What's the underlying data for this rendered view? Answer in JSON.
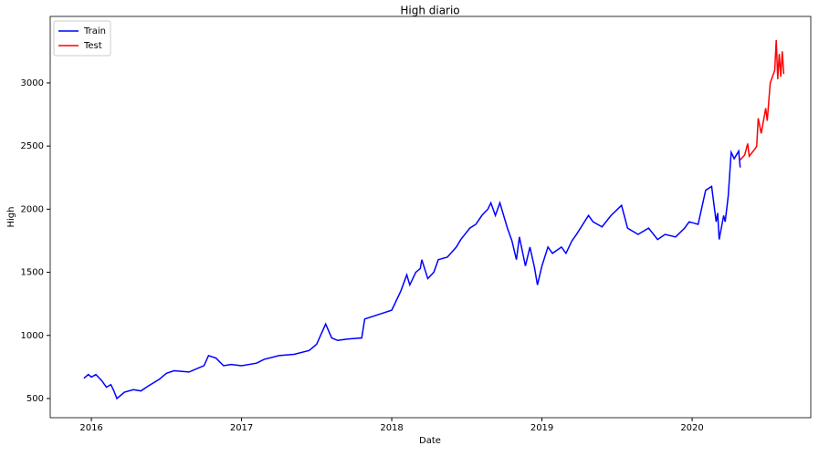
{
  "chart_data": {
    "type": "line",
    "title": "High diario",
    "x_label": "Date",
    "y_label": "High",
    "xlim": [
      2015.726,
      2020.79
    ],
    "ylim": [
      348,
      3527
    ],
    "xticks": [
      2016,
      2017,
      2018,
      2019,
      2020
    ],
    "yticks": [
      500,
      1000,
      1500,
      2000,
      2500,
      3000
    ],
    "legend": "upper left",
    "grid": false,
    "series": [
      {
        "name": "Train",
        "color": "#0000ff",
        "x": [
          2015.95,
          2015.98,
          2016.0,
          2016.03,
          2016.07,
          2016.1,
          2016.13,
          2016.15,
          2016.17,
          2016.22,
          2016.28,
          2016.33,
          2016.38,
          2016.45,
          2016.5,
          2016.55,
          2016.65,
          2016.75,
          2016.78,
          2016.83,
          2016.88,
          2016.93,
          2017.0,
          2017.1,
          2017.15,
          2017.25,
          2017.35,
          2017.45,
          2017.5,
          2017.56,
          2017.6,
          2017.64,
          2017.7,
          2017.8,
          2017.82,
          2017.95,
          2018.0,
          2018.06,
          2018.1,
          2018.12,
          2018.16,
          2018.19,
          2018.2,
          2018.24,
          2018.28,
          2018.31,
          2018.37,
          2018.43,
          2018.46,
          2018.52,
          2018.56,
          2018.6,
          2018.64,
          2018.66,
          2018.69,
          2018.72,
          2018.77,
          2018.8,
          2018.83,
          2018.85,
          2018.89,
          2018.92,
          2018.95,
          2018.97,
          2019.0,
          2019.04,
          2019.07,
          2019.13,
          2019.16,
          2019.2,
          2019.23,
          2019.31,
          2019.34,
          2019.4,
          2019.46,
          2019.53,
          2019.57,
          2019.64,
          2019.71,
          2019.77,
          2019.82,
          2019.89,
          2019.95,
          2019.98,
          2020.04,
          2020.09,
          2020.13,
          2020.16,
          2020.17,
          2020.18,
          2020.21,
          2020.22,
          2020.24,
          2020.26,
          2020.28,
          2020.31,
          2020.32
        ],
        "values": [
          660,
          690,
          670,
          690,
          640,
          590,
          610,
          560,
          500,
          550,
          570,
          560,
          600,
          650,
          700,
          720,
          710,
          760,
          840,
          820,
          760,
          770,
          760,
          780,
          810,
          840,
          850,
          880,
          930,
          1090,
          980,
          960,
          970,
          980,
          1130,
          1180,
          1200,
          1350,
          1480,
          1400,
          1500,
          1530,
          1600,
          1450,
          1500,
          1600,
          1620,
          1700,
          1760,
          1850,
          1880,
          1950,
          2000,
          2050,
          1950,
          2050,
          1850,
          1750,
          1600,
          1780,
          1550,
          1700,
          1540,
          1400,
          1550,
          1700,
          1650,
          1700,
          1650,
          1750,
          1800,
          1950,
          1900,
          1860,
          1950,
          2030,
          1850,
          1800,
          1850,
          1760,
          1800,
          1780,
          1850,
          1900,
          1880,
          2150,
          2180,
          1900,
          1970,
          1760,
          1950,
          1900,
          2100,
          2450,
          2400,
          2460,
          2330
        ]
      },
      {
        "name": "Test",
        "color": "#ff0000",
        "x": [
          2020.32,
          2020.35,
          2020.37,
          2020.38,
          2020.42,
          2020.43,
          2020.44,
          2020.46,
          2020.49,
          2020.5,
          2020.52,
          2020.55,
          2020.56,
          2020.57,
          2020.58,
          2020.59,
          2020.6,
          2020.61
        ],
        "values": [
          2390,
          2430,
          2520,
          2420,
          2480,
          2500,
          2720,
          2600,
          2800,
          2700,
          3000,
          3100,
          3340,
          3030,
          3230,
          3050,
          3250,
          3070
        ]
      }
    ]
  }
}
